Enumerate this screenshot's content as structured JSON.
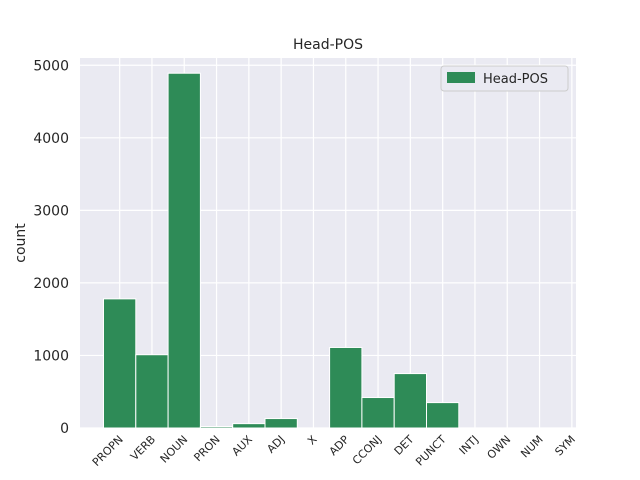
{
  "chart_data": {
    "type": "bar",
    "title": "Head-POS",
    "xlabel": "",
    "ylabel": "count",
    "categories": [
      "PROPN",
      "VERB",
      "NOUN",
      "PRON",
      "AUX",
      "ADJ",
      "X",
      "ADP",
      "CCONJ",
      "DET",
      "PUNCT",
      "INTJ",
      "OWN",
      "NUM",
      "SYM"
    ],
    "series": [
      {
        "name": "Head-POS",
        "values": [
          1780,
          1010,
          4890,
          20,
          60,
          130,
          0,
          1110,
          420,
          750,
          350,
          0,
          0,
          0,
          0
        ],
        "color": "#2e8b57"
      }
    ],
    "ylim": [
      0,
      5100
    ],
    "yticks": [
      0,
      1000,
      2000,
      3000,
      4000,
      5000
    ],
    "grid": true,
    "legend": "top-right",
    "background": "#eaeaf2"
  }
}
